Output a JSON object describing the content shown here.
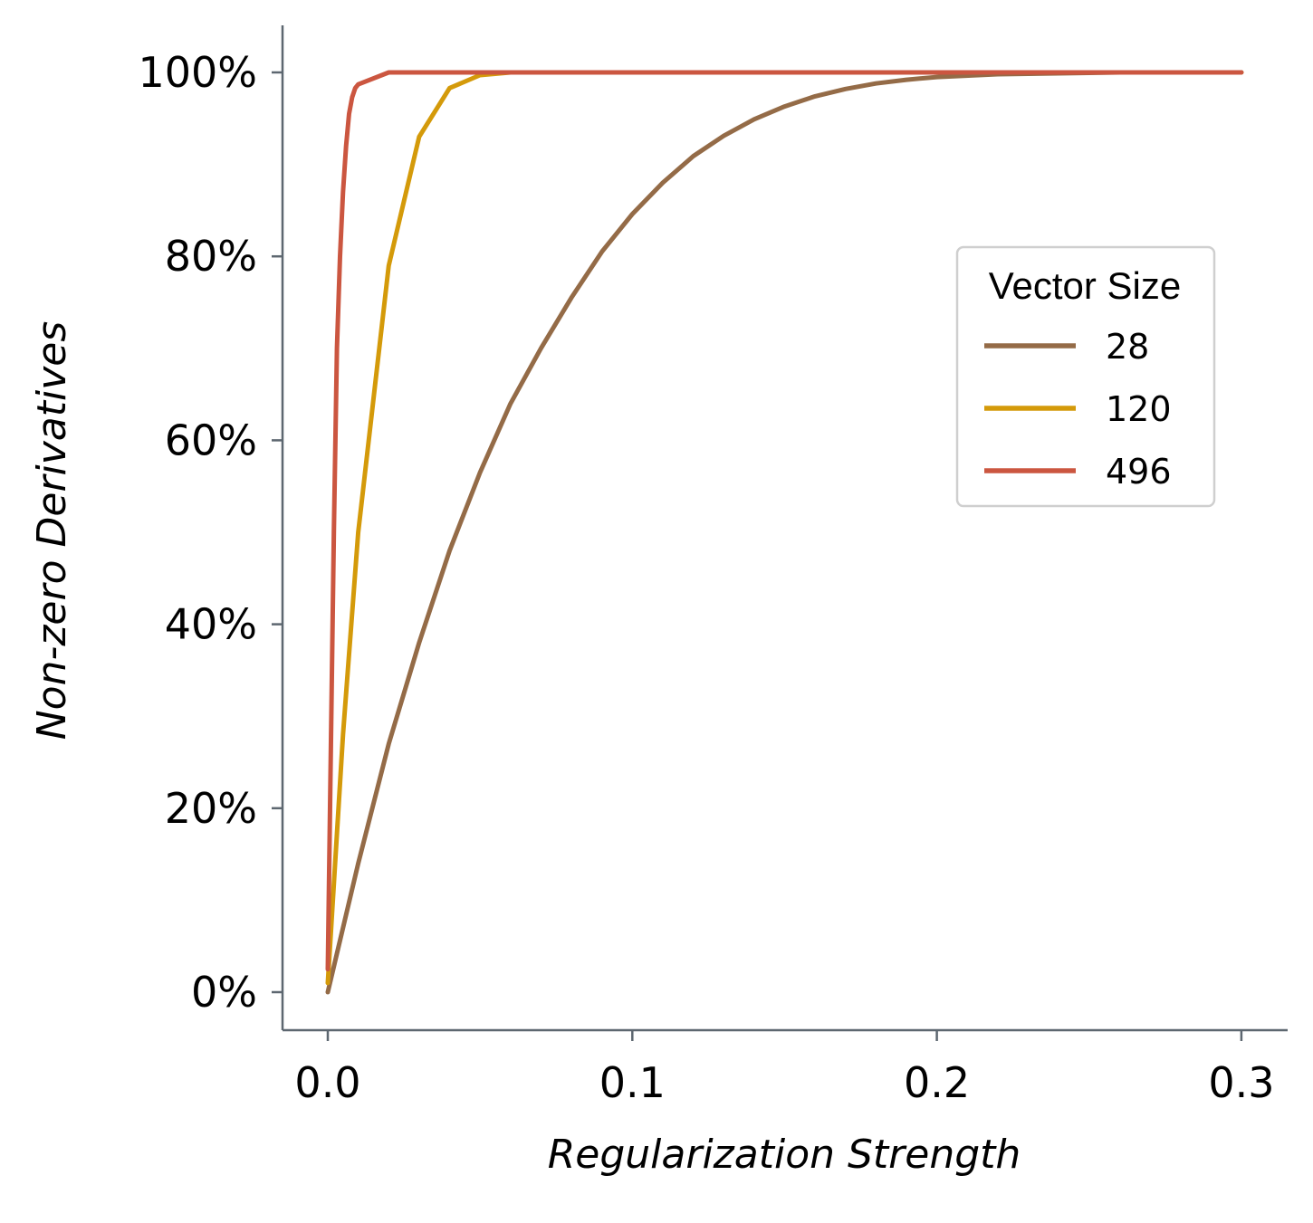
{
  "chart_data": {
    "type": "line",
    "title": "",
    "xlabel": "Regularization Strength",
    "ylabel": "Non-zero Derivatives",
    "xlim": [
      -0.015,
      0.315
    ],
    "ylim": [
      -4,
      105
    ],
    "x_ticks": [
      {
        "value": 0.0,
        "label": "0.0"
      },
      {
        "value": 0.1,
        "label": "0.1"
      },
      {
        "value": 0.2,
        "label": "0.2"
      },
      {
        "value": 0.3,
        "label": "0.3"
      }
    ],
    "y_ticks": [
      {
        "value": 0,
        "label": "0%"
      },
      {
        "value": 20,
        "label": "20%"
      },
      {
        "value": 40,
        "label": "40%"
      },
      {
        "value": 60,
        "label": "60%"
      },
      {
        "value": 80,
        "label": "80%"
      },
      {
        "value": 100,
        "label": "100%"
      }
    ],
    "grid": false,
    "legend": {
      "title": "Vector Size",
      "placement": "right"
    },
    "series": [
      {
        "name": "28",
        "color": "#946b47",
        "x": [
          0,
          0.01,
          0.02,
          0.03,
          0.04,
          0.05,
          0.06,
          0.07,
          0.08,
          0.09,
          0.1,
          0.11,
          0.12,
          0.13,
          0.14,
          0.15,
          0.16,
          0.17,
          0.18,
          0.19,
          0.2,
          0.22,
          0.24,
          0.26,
          0.28,
          0.3
        ],
        "y": [
          0,
          14,
          27,
          38,
          48,
          56.5,
          64,
          70,
          75.5,
          80.5,
          84.6,
          88,
          90.9,
          93.1,
          94.9,
          96.3,
          97.4,
          98.2,
          98.8,
          99.2,
          99.5,
          99.8,
          99.9,
          100,
          100,
          100
        ]
      },
      {
        "name": "120",
        "color": "#d49a0a",
        "x": [
          0,
          0.005,
          0.01,
          0.02,
          0.03,
          0.04,
          0.05,
          0.06,
          0.08,
          0.1,
          0.15,
          0.2,
          0.25,
          0.3
        ],
        "y": [
          1,
          28,
          50,
          79,
          93,
          98.3,
          99.7,
          100,
          100,
          100,
          100,
          100,
          100,
          100
        ]
      },
      {
        "name": "496",
        "color": "#cb5640",
        "x": [
          0,
          0.002,
          0.003,
          0.004,
          0.005,
          0.006,
          0.007,
          0.008,
          0.009,
          0.01,
          0.02,
          0.05,
          0.1,
          0.2,
          0.3
        ],
        "y": [
          2.5,
          50,
          70,
          80,
          87,
          92,
          95.5,
          97.3,
          98.3,
          98.7,
          100,
          100,
          100,
          100,
          100
        ]
      }
    ]
  }
}
